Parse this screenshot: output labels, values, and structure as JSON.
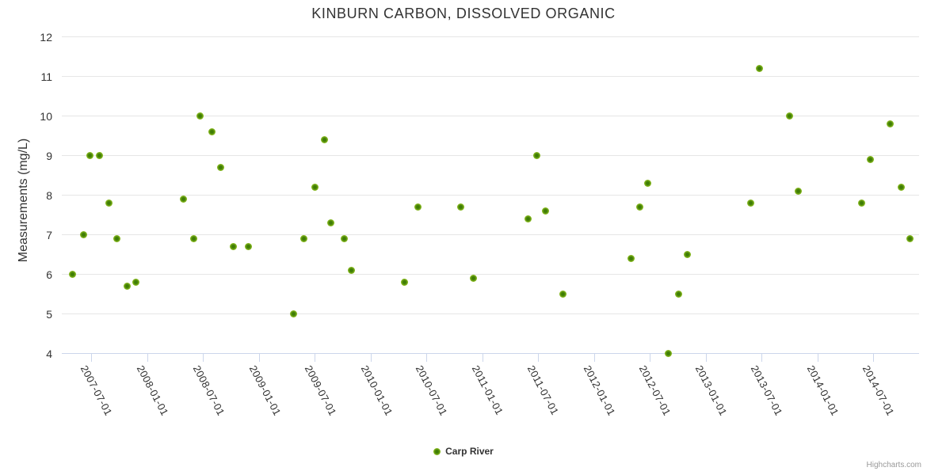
{
  "credit": "Highcharts.com",
  "colors": {
    "series_green": "#8bbc21",
    "point_center_green": "#3f7d05",
    "grid_line": "#e6e6e6",
    "axis_line": "#ccd6eb",
    "text": "#333333",
    "credit_text": "#999999"
  },
  "chart_data": {
    "type": "scatter",
    "title": "KINBURN CARBON, DISSOLVED ORGANIC",
    "xlabel": "",
    "ylabel": "Measurements (mg/L)",
    "ylim": [
      4,
      12
    ],
    "yticks": [
      4,
      5,
      6,
      7,
      8,
      9,
      10,
      11,
      12
    ],
    "xlim": [
      "2007-03-26",
      "2014-11-28"
    ],
    "xticks": [
      "2007-07-01",
      "2008-01-01",
      "2008-07-01",
      "2009-01-01",
      "2009-07-01",
      "2010-01-01",
      "2010-07-01",
      "2011-01-01",
      "2011-07-01",
      "2012-01-01",
      "2012-07-01",
      "2013-01-01",
      "2013-07-01",
      "2014-01-01",
      "2014-07-01"
    ],
    "grid": true,
    "legend_position": "bottom-center",
    "series": [
      {
        "name": "Carp River",
        "color": "#8bbc21",
        "points": [
          [
            "2007-04-29",
            6.0
          ],
          [
            "2007-06-04",
            7.0
          ],
          [
            "2007-06-25",
            9.0
          ],
          [
            "2007-07-28",
            9.0
          ],
          [
            "2007-08-26",
            7.8
          ],
          [
            "2007-09-23",
            6.9
          ],
          [
            "2007-10-27",
            5.7
          ],
          [
            "2007-11-24",
            5.8
          ],
          [
            "2008-04-28",
            7.9
          ],
          [
            "2008-05-31",
            6.9
          ],
          [
            "2008-06-21",
            10.0
          ],
          [
            "2008-07-28",
            9.6
          ],
          [
            "2008-08-26",
            8.7
          ],
          [
            "2008-10-06",
            6.7
          ],
          [
            "2008-11-25",
            6.7
          ],
          [
            "2009-04-21",
            5.0
          ],
          [
            "2009-05-25",
            6.9
          ],
          [
            "2009-06-30",
            8.2
          ],
          [
            "2009-07-31",
            9.4
          ],
          [
            "2009-08-23",
            7.3
          ],
          [
            "2009-10-06",
            6.9
          ],
          [
            "2009-10-27",
            6.1
          ],
          [
            "2010-04-19",
            5.8
          ],
          [
            "2010-06-02",
            7.7
          ],
          [
            "2010-10-22",
            7.7
          ],
          [
            "2010-11-30",
            5.9
          ],
          [
            "2011-05-30",
            7.4
          ],
          [
            "2011-06-27",
            9.0
          ],
          [
            "2011-07-26",
            7.6
          ],
          [
            "2011-09-21",
            5.5
          ],
          [
            "2012-05-01",
            6.4
          ],
          [
            "2012-05-29",
            7.7
          ],
          [
            "2012-06-24",
            8.3
          ],
          [
            "2012-08-30",
            4.0
          ],
          [
            "2012-10-02",
            5.5
          ],
          [
            "2012-10-31",
            6.5
          ],
          [
            "2013-05-26",
            7.8
          ],
          [
            "2013-06-24",
            11.2
          ],
          [
            "2013-09-30",
            10.0
          ],
          [
            "2013-10-29",
            8.1
          ],
          [
            "2014-05-24",
            7.8
          ],
          [
            "2014-06-21",
            8.9
          ],
          [
            "2014-08-25",
            9.8
          ],
          [
            "2014-09-30",
            8.2
          ],
          [
            "2014-10-28",
            6.9
          ]
        ]
      }
    ]
  }
}
